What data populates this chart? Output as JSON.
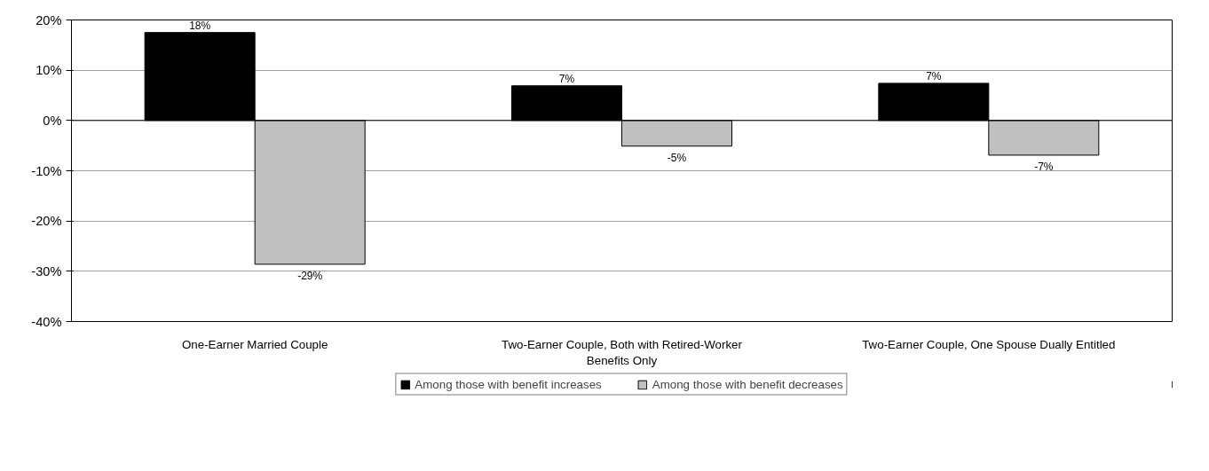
{
  "chart_data": {
    "type": "bar",
    "categories": [
      "One-Earner Married Couple",
      "Two-Earner Couple, Both with Retired-Worker Benefits Only",
      "Two-Earner Couple, One Spouse Dually Entitled"
    ],
    "series": [
      {
        "name": "Among those with benefit increases",
        "color": "#000000",
        "values": [
          17.5,
          6.9,
          7.4
        ],
        "value_labels": [
          "18%",
          "7%",
          "7%"
        ]
      },
      {
        "name": "Among those with benefit decreases",
        "color": "#c0c0c0",
        "values": [
          -28.6,
          -5.1,
          -6.9
        ],
        "value_labels": [
          "-29%",
          "-5%",
          "-7%"
        ]
      }
    ],
    "ylim": [
      -40,
      20
    ],
    "yticks": [
      {
        "value": -40,
        "label": "-40%"
      },
      {
        "value": -30,
        "label": "-30%"
      },
      {
        "value": -20,
        "label": "-20%"
      },
      {
        "value": -10,
        "label": "-10%"
      },
      {
        "value": 0,
        "label": "0%"
      },
      {
        "value": 10,
        "label": "10%"
      },
      {
        "value": 20,
        "label": "20%"
      }
    ],
    "grid": "y",
    "legend": "bottom"
  }
}
